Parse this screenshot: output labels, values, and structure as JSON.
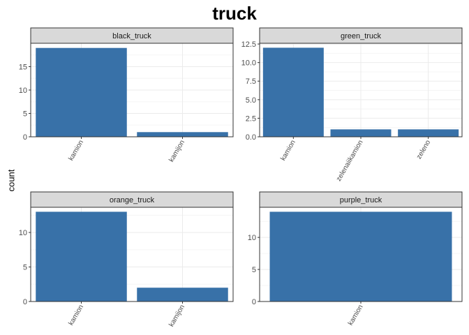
{
  "title": "truck",
  "ylabel": "count",
  "colors": {
    "bar": "#3871a8",
    "strip": "#d9d9d9",
    "grid_major": "#ebebeb",
    "grid_minor": "#f5f5f5",
    "border": "#333333"
  },
  "chart_data": [
    {
      "type": "bar",
      "facet": "black_truck",
      "categories": [
        "kamion",
        "kamijon"
      ],
      "values": [
        19,
        1
      ],
      "ylim": [
        0,
        20
      ],
      "yticks": [
        0,
        5,
        10,
        15
      ],
      "ytick_labels": [
        "0",
        "5",
        "10",
        "15"
      ]
    },
    {
      "type": "bar",
      "facet": "green_truck",
      "categories": [
        "kamion",
        "zelenaiikamion",
        "zeleno"
      ],
      "values": [
        12,
        1,
        1
      ],
      "ylim": [
        0,
        12.6
      ],
      "yticks": [
        0,
        2.5,
        5,
        7.5,
        10,
        12.5
      ],
      "ytick_labels": [
        "0.0",
        "2.5",
        "5.0",
        "7.5",
        "10.0",
        "12.5"
      ]
    },
    {
      "type": "bar",
      "facet": "orange_truck",
      "categories": [
        "kamion",
        "kamijon"
      ],
      "values": [
        13,
        2
      ],
      "ylim": [
        0,
        13.65
      ],
      "yticks": [
        0,
        5,
        10
      ],
      "ytick_labels": [
        "0",
        "5",
        "10"
      ]
    },
    {
      "type": "bar",
      "facet": "purple_truck",
      "categories": [
        "kamion"
      ],
      "values": [
        14
      ],
      "ylim": [
        0,
        14.7
      ],
      "yticks": [
        0,
        5,
        10
      ],
      "ytick_labels": [
        "0",
        "5",
        "10"
      ]
    }
  ]
}
